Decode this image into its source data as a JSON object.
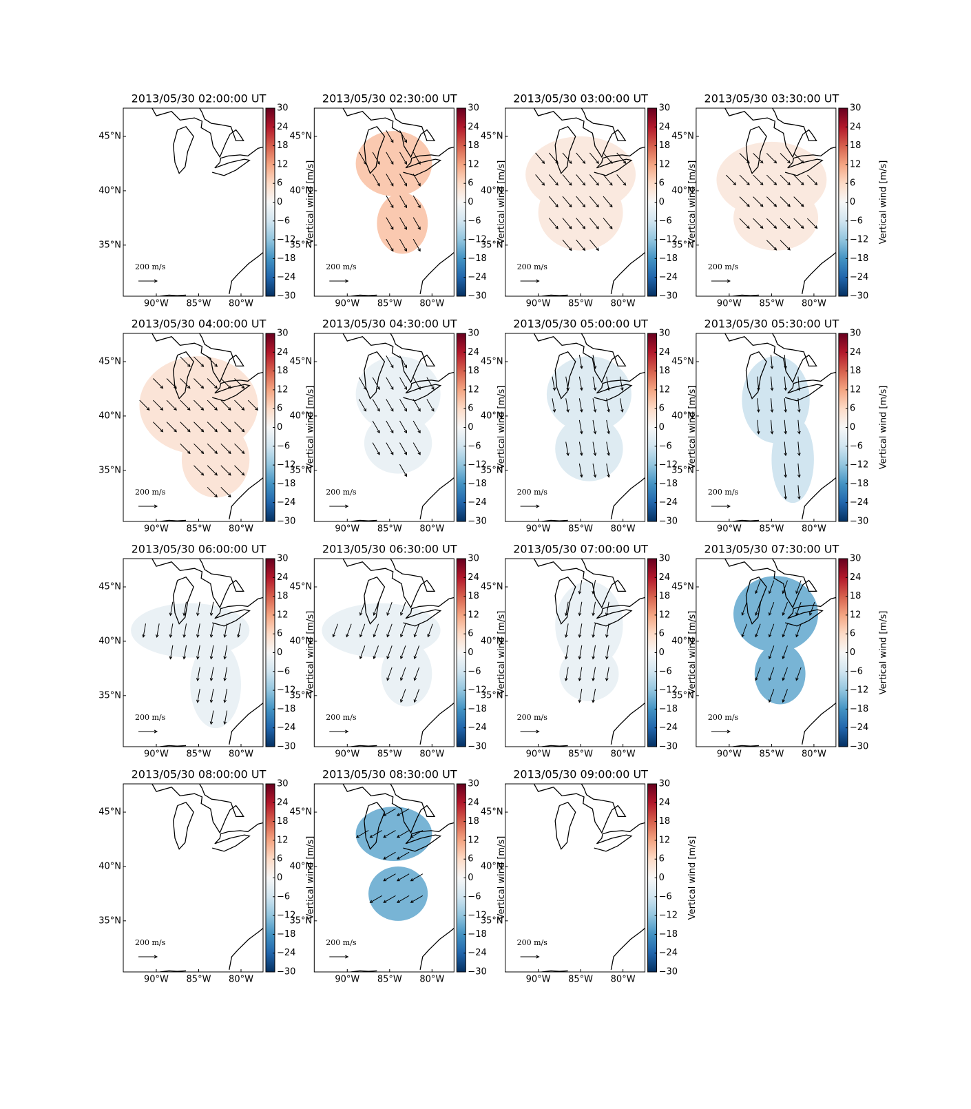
{
  "chart_data": {
    "type": "map",
    "colorbar_label": "Vertical wind [m/s]",
    "colormap": "RdBu_r",
    "clim": [
      -30,
      30
    ],
    "cticks": [
      {
        "value": -30,
        "label": "−30"
      },
      {
        "value": -24,
        "label": "−24"
      },
      {
        "value": -18,
        "label": "−18"
      },
      {
        "value": -12,
        "label": "−12"
      },
      {
        "value": -6,
        "label": "−6"
      },
      0,
      6,
      12,
      18,
      24,
      30
    ],
    "xlim": [
      -93.9,
      -77.4
    ],
    "ylim": [
      30.3,
      47.6
    ],
    "xticks": [
      {
        "value": -90,
        "label": "90°W"
      },
      {
        "value": -85,
        "label": "85°W"
      },
      {
        "value": -80,
        "label": "80°W"
      }
    ],
    "yticks": [
      {
        "value": 35,
        "label": "35°N"
      },
      {
        "value": 40,
        "label": "40°N"
      },
      {
        "value": 45,
        "label": "45°N"
      }
    ],
    "scale_label": "200 m/s",
    "panels": [
      {
        "title": "2013/05/30 02:00:00 UT",
        "vertical_wind": null,
        "wind_dir": null
      },
      {
        "title": "2013/05/30 02:30:00 UT",
        "vertical_wind": 8,
        "wind_dir": 150
      },
      {
        "title": "2013/05/30 03:00:00 UT",
        "vertical_wind": 3,
        "wind_dir": 140
      },
      {
        "title": "2013/05/30 03:30:00 UT",
        "vertical_wind": 3,
        "wind_dir": 135
      },
      {
        "title": "2013/05/30 04:00:00 UT",
        "vertical_wind": 4,
        "wind_dir": 135
      },
      {
        "title": "2013/05/30 04:30:00 UT",
        "vertical_wind": -2,
        "wind_dir": 150
      },
      {
        "title": "2013/05/30 05:00:00 UT",
        "vertical_wind": -4,
        "wind_dir": 170
      },
      {
        "title": "2013/05/30 05:30:00 UT",
        "vertical_wind": -6,
        "wind_dir": 175
      },
      {
        "title": "2013/05/30 06:00:00 UT",
        "vertical_wind": -2,
        "wind_dir": 190
      },
      {
        "title": "2013/05/30 06:30:00 UT",
        "vertical_wind": -2,
        "wind_dir": 200
      },
      {
        "title": "2013/05/30 07:00:00 UT",
        "vertical_wind": -2,
        "wind_dir": 190
      },
      {
        "title": "2013/05/30 07:30:00 UT",
        "vertical_wind": -14,
        "wind_dir": 200
      },
      {
        "title": "2013/05/30 08:00:00 UT",
        "vertical_wind": null,
        "wind_dir": null
      },
      {
        "title": "2013/05/30 08:30:00 UT",
        "vertical_wind": -14,
        "wind_dir": 240
      },
      {
        "title": "2013/05/30 09:00:00 UT",
        "vertical_wind": null,
        "wind_dir": null
      }
    ]
  }
}
